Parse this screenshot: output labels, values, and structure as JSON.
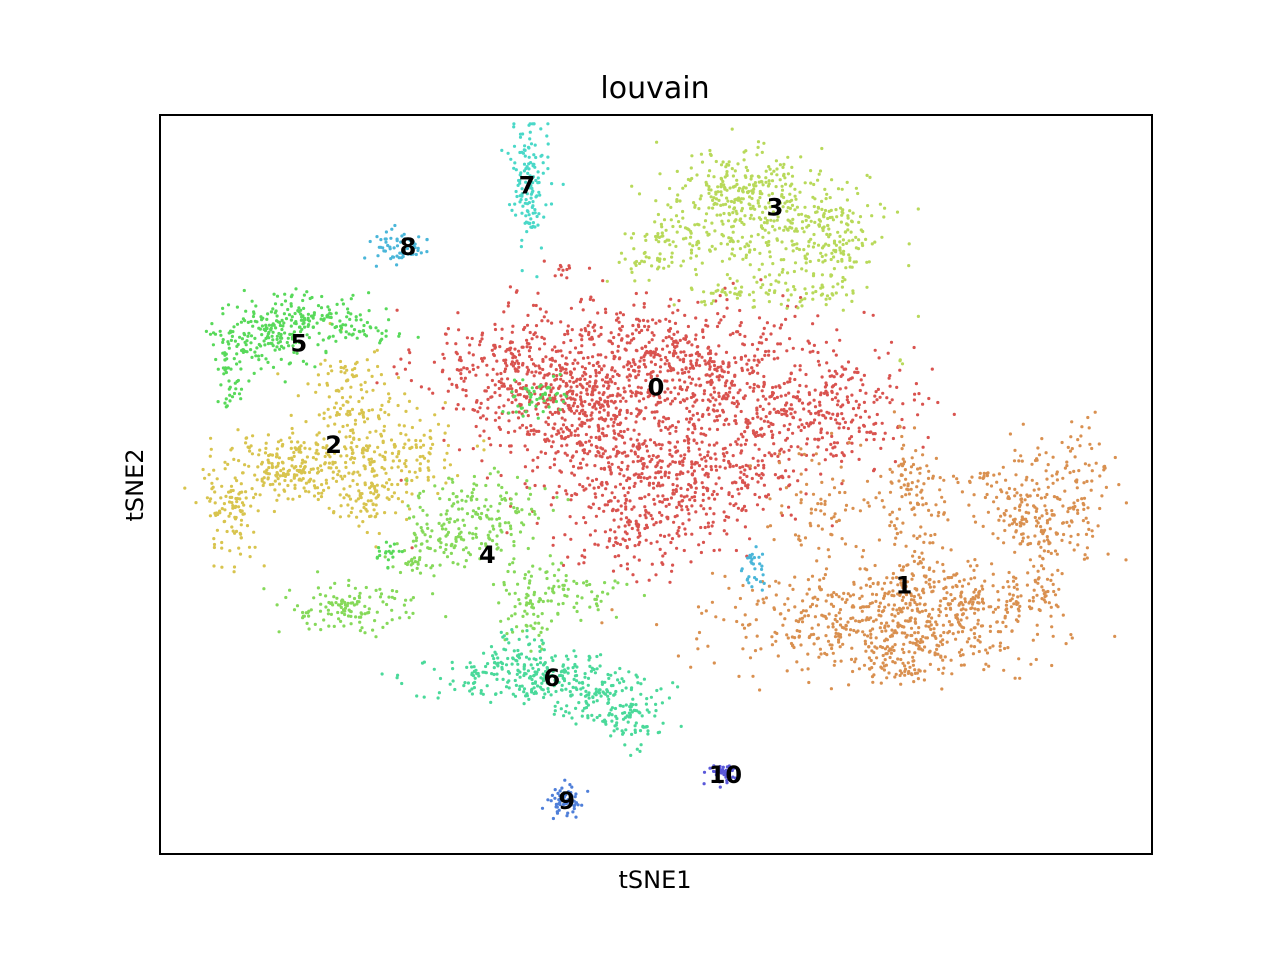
{
  "chart_data": {
    "type": "scatter",
    "title": "louvain",
    "xlabel": "tSNE1",
    "ylabel": "tSNE2",
    "xticks": [],
    "yticks": [],
    "grid": false,
    "legend": "on data",
    "xlim": [
      -50,
      50
    ],
    "ylim": [
      -42,
      42
    ],
    "clusters": [
      {
        "name": "0",
        "color": "#d9534f",
        "center": [
          0,
          10
        ],
        "label_pos": [
          0,
          11
        ]
      },
      {
        "name": "1",
        "color": "#d99050",
        "center": [
          25,
          -12
        ],
        "label_pos": [
          25,
          -11.5
        ]
      },
      {
        "name": "2",
        "color": "#d8c44e",
        "center": [
          -33,
          3
        ],
        "label_pos": [
          -32.5,
          4.5
        ]
      },
      {
        "name": "3",
        "color": "#b8d95a",
        "center": [
          11,
          30
        ],
        "label_pos": [
          12,
          31.5
        ]
      },
      {
        "name": "4",
        "color": "#86d95a",
        "center": [
          -17,
          -6
        ],
        "label_pos": [
          -17,
          -8
        ]
      },
      {
        "name": "5",
        "color": "#58d95a",
        "center": [
          -37,
          16
        ],
        "label_pos": [
          -36,
          16
        ]
      },
      {
        "name": "6",
        "color": "#4ad99a",
        "center": [
          -10,
          -24
        ],
        "label_pos": [
          -10.5,
          -22
        ]
      },
      {
        "name": "7",
        "color": "#4ad8c8",
        "center": [
          -13,
          33
        ],
        "label_pos": [
          -13,
          34
        ]
      },
      {
        "name": "8",
        "color": "#4ab6d9",
        "center": [
          -26,
          27
        ],
        "label_pos": [
          -25,
          27
        ]
      },
      {
        "name": "9",
        "color": "#4f7fd9",
        "center": [
          -9,
          -36
        ],
        "label_pos": [
          -9,
          -36
        ]
      },
      {
        "name": "10",
        "color": "#5a58d9",
        "center": [
          7,
          -33
        ],
        "label_pos": [
          7,
          -33
        ]
      }
    ]
  }
}
